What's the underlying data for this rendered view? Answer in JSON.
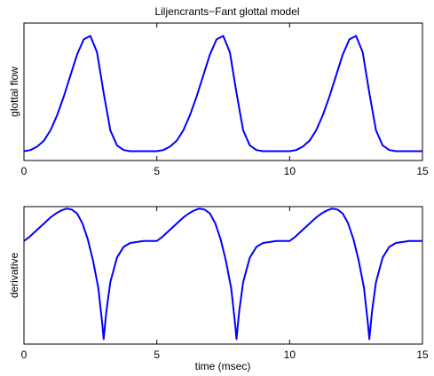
{
  "figure": {
    "title": "Liljencrants−Fant glottal model",
    "xlabel": "time (msec)"
  },
  "chart_data": [
    {
      "type": "line",
      "ylabel": "glottal flow",
      "xlim": [
        0,
        15
      ],
      "ylim": [
        -0.08,
        1.1
      ],
      "xticks": [
        0,
        5,
        10,
        15
      ],
      "xtick_labels": [
        "0",
        "5",
        "10",
        "15"
      ],
      "yticks": [],
      "grid": false,
      "series": [
        {
          "color": "#0000ff",
          "x": [
            0,
            0.25,
            0.5,
            0.75,
            1.0,
            1.25,
            1.5,
            1.75,
            2.0,
            2.25,
            2.5,
            2.75,
            3.0,
            3.25,
            3.5,
            3.75,
            4.0,
            5.0,
            5.25,
            5.5,
            5.75,
            6.0,
            6.25,
            6.5,
            6.75,
            7.0,
            7.25,
            7.5,
            7.75,
            8.0,
            8.25,
            8.5,
            8.75,
            9.0,
            10.0,
            10.25,
            10.5,
            10.75,
            11.0,
            11.25,
            11.5,
            11.75,
            12.0,
            12.25,
            12.5,
            12.75,
            13.0,
            13.25,
            13.5,
            13.75,
            14.0,
            15.0
          ],
          "y": [
            0.0,
            0.01,
            0.04,
            0.09,
            0.18,
            0.31,
            0.47,
            0.65,
            0.83,
            0.96,
            0.99,
            0.85,
            0.5,
            0.18,
            0.05,
            0.01,
            0.0,
            0.0,
            0.01,
            0.04,
            0.09,
            0.18,
            0.31,
            0.47,
            0.65,
            0.83,
            0.96,
            0.99,
            0.85,
            0.5,
            0.18,
            0.05,
            0.01,
            0.0,
            0.0,
            0.01,
            0.04,
            0.09,
            0.18,
            0.31,
            0.47,
            0.65,
            0.83,
            0.96,
            0.99,
            0.85,
            0.5,
            0.18,
            0.05,
            0.01,
            0.0,
            0.0
          ]
        }
      ]
    },
    {
      "type": "line",
      "ylabel": "derivative",
      "xlim": [
        0,
        15
      ],
      "ylim": [
        -1.05,
        0.35
      ],
      "xticks": [
        0,
        5,
        10,
        15
      ],
      "xtick_labels": [
        "0",
        "5",
        "10",
        "15"
      ],
      "yticks": [],
      "grid": false,
      "series": [
        {
          "color": "#0000ff",
          "x": [
            0,
            0.2,
            0.4,
            0.6,
            0.8,
            1.0,
            1.2,
            1.4,
            1.6,
            1.8,
            2.0,
            2.2,
            2.4,
            2.6,
            2.8,
            2.95,
            3.0,
            3.1,
            3.25,
            3.5,
            3.75,
            4.0,
            4.5,
            5.0,
            5.2,
            5.4,
            5.6,
            5.8,
            6.0,
            6.2,
            6.4,
            6.6,
            6.8,
            7.0,
            7.2,
            7.4,
            7.6,
            7.8,
            7.95,
            8.0,
            8.1,
            8.25,
            8.5,
            8.75,
            9.0,
            9.5,
            10.0,
            10.2,
            10.4,
            10.6,
            10.8,
            11.0,
            11.2,
            11.4,
            11.6,
            11.8,
            12.0,
            12.2,
            12.4,
            12.6,
            12.8,
            12.95,
            13.0,
            13.1,
            13.25,
            13.5,
            13.75,
            14.0,
            14.5,
            15.0
          ],
          "y": [
            0.0,
            0.04,
            0.09,
            0.14,
            0.19,
            0.24,
            0.28,
            0.31,
            0.33,
            0.32,
            0.28,
            0.18,
            0.02,
            -0.2,
            -0.48,
            -0.85,
            -1.0,
            -0.72,
            -0.42,
            -0.17,
            -0.06,
            -0.02,
            0.0,
            0.0,
            0.04,
            0.09,
            0.14,
            0.19,
            0.24,
            0.28,
            0.31,
            0.33,
            0.32,
            0.28,
            0.18,
            0.02,
            -0.2,
            -0.48,
            -0.85,
            -1.0,
            -0.72,
            -0.42,
            -0.17,
            -0.06,
            -0.02,
            0.0,
            0.0,
            0.04,
            0.09,
            0.14,
            0.19,
            0.24,
            0.28,
            0.31,
            0.33,
            0.32,
            0.28,
            0.18,
            0.02,
            -0.2,
            -0.48,
            -0.85,
            -1.0,
            -0.72,
            -0.42,
            -0.17,
            -0.06,
            -0.02,
            0.0,
            0.0
          ]
        }
      ]
    }
  ]
}
